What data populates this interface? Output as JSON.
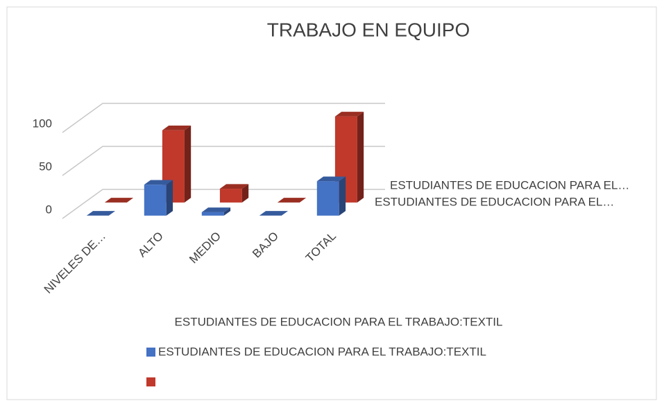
{
  "chart_data": {
    "type": "bar3d",
    "title": "TRABAJO EN EQUIPO",
    "x_label": "ESTUDIANTES DE EDUCACION PARA EL TRABAJO:TEXTIL",
    "categories": [
      "NIVELES DE…",
      "ALTO",
      "MEDIO",
      "BAJO",
      "TOTAL"
    ],
    "depth_labels": [
      "ESTUDIANTES DE EDUCACION PARA EL…",
      "ESTUDIANTES DE EDUCACION PARA EL…"
    ],
    "series": [
      {
        "name": "ESTUDIANTES DE EDUCACION PARA EL TRABAJO:TEXTIL",
        "color": "#4472c4",
        "values": [
          0,
          36,
          4,
          0,
          40
        ]
      },
      {
        "color": "#c0392b",
        "values": [
          0,
          84,
          16,
          0,
          100
        ]
      }
    ],
    "ylim": [
      0,
      100
    ],
    "yticks": [
      0,
      50,
      100
    ],
    "grid": true
  }
}
